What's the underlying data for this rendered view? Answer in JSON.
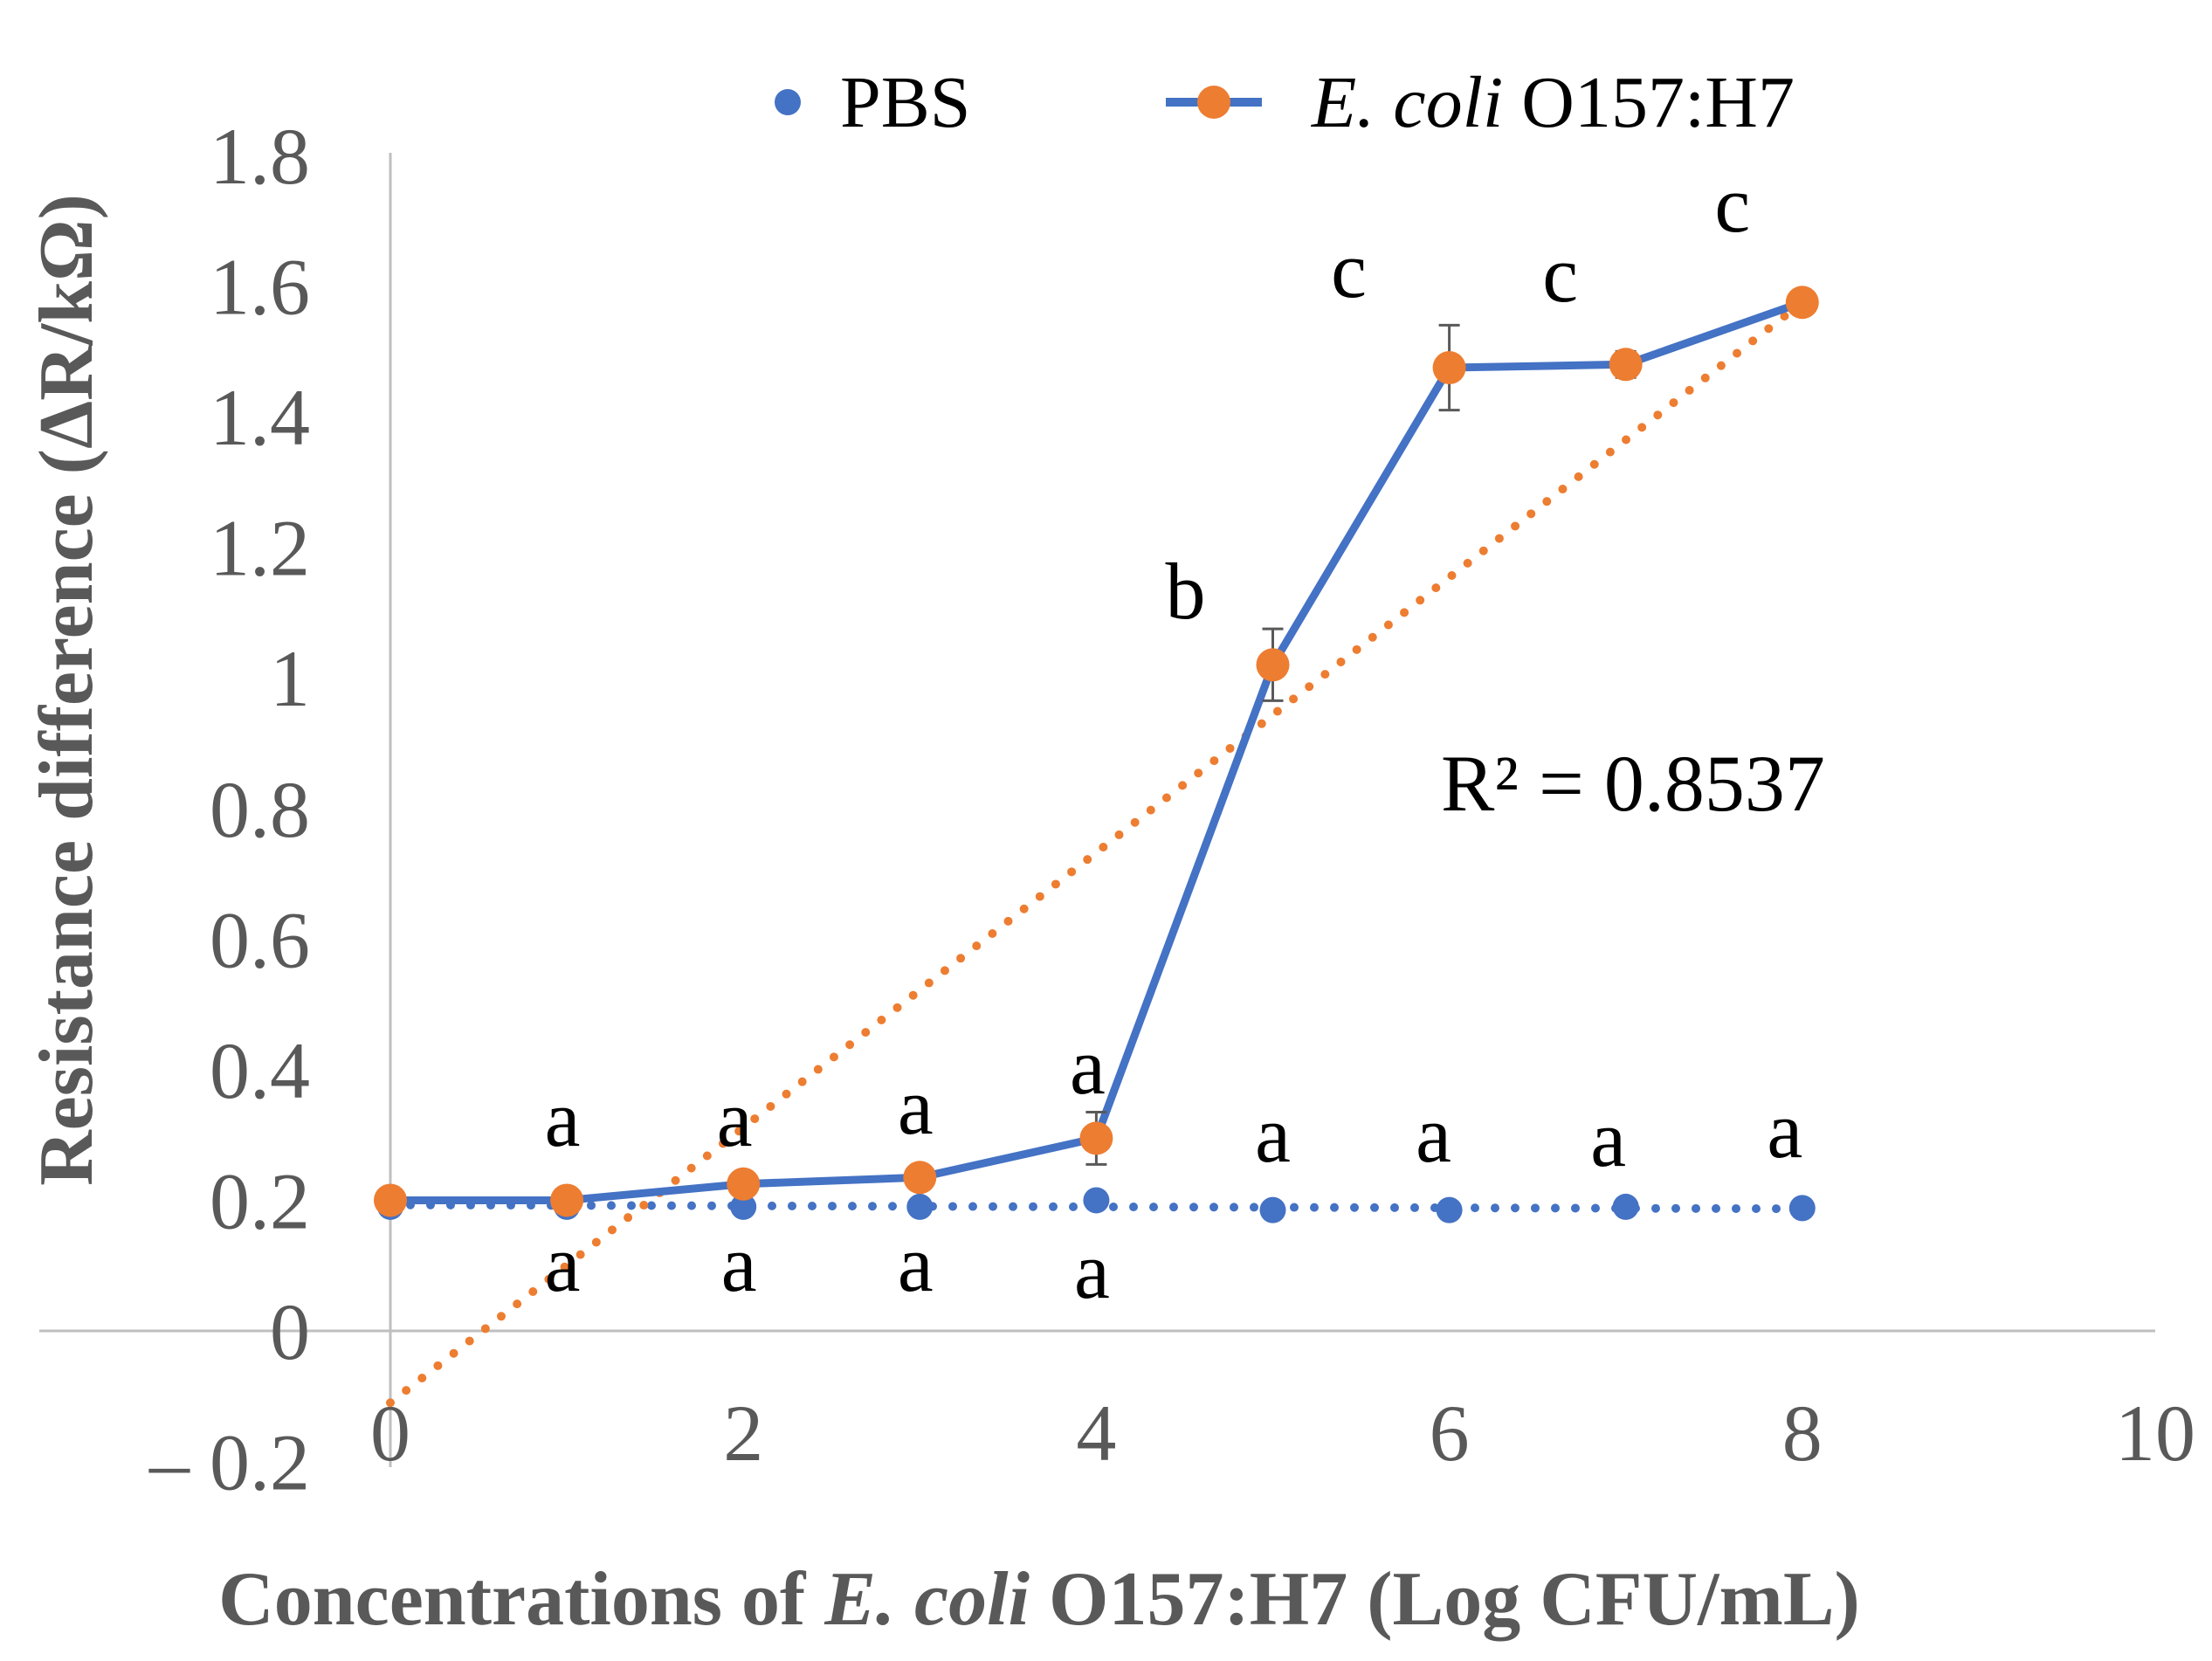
{
  "chart_data": {
    "type": "line",
    "title": "",
    "xlabel_parts": [
      "Concentrations of ",
      "E. coli",
      " O157:H7 (Log CFU/mL)"
    ],
    "ylabel": "Resistance difference (ΔR/kΩ)",
    "xlim": [
      0,
      10
    ],
    "ylim": [
      -0.2,
      1.8
    ],
    "xticks": [
      {
        "value": 0,
        "label": "0"
      },
      {
        "value": 2,
        "label": "2"
      },
      {
        "value": 4,
        "label": "4"
      },
      {
        "value": 6,
        "label": "6"
      },
      {
        "value": 8,
        "label": "8"
      },
      {
        "value": 10,
        "label": "10"
      }
    ],
    "yticks": [
      {
        "value": -0.2,
        "label": "– 0.2"
      },
      {
        "value": 0,
        "label": "0"
      },
      {
        "value": 0.2,
        "label": "0.2"
      },
      {
        "value": 0.4,
        "label": "0.4"
      },
      {
        "value": 0.6,
        "label": "0.6"
      },
      {
        "value": 0.8,
        "label": "0.8"
      },
      {
        "value": 1,
        "label": "1"
      },
      {
        "value": 1.2,
        "label": "1.2"
      },
      {
        "value": 1.4,
        "label": "1.4"
      },
      {
        "value": 1.6,
        "label": "1.6"
      },
      {
        "value": 1.8,
        "label": "1.8"
      }
    ],
    "legend_position": "top",
    "series": [
      {
        "name": "PBS",
        "legend_label": "PBS",
        "color": "#4472C4",
        "style": "markers",
        "x": [
          0,
          1,
          2,
          3,
          4,
          5,
          6,
          7,
          8
        ],
        "y": [
          0.19,
          0.19,
          0.19,
          0.19,
          0.2,
          0.185,
          0.185,
          0.19,
          0.188
        ],
        "letters": [
          "",
          "a",
          "a",
          "a",
          "a",
          "a",
          "a",
          "a",
          "a"
        ],
        "trendline": {
          "type": "linear",
          "color": "#4472C4",
          "x0": 0,
          "y0": 0.193,
          "x1": 8,
          "y1": 0.187
        }
      },
      {
        "name": "E. coli O157:H7",
        "legend_label_parts": [
          "E. coli",
          " O157:H7"
        ],
        "line_color": "#4472C4",
        "marker_color": "#ED7D31",
        "style": "line+markers",
        "x": [
          0,
          1,
          2,
          3,
          4,
          5,
          6,
          7,
          8
        ],
        "y": [
          0.2,
          0.2,
          0.225,
          0.235,
          0.295,
          1.02,
          1.475,
          1.48,
          1.575
        ],
        "error": [
          0,
          0,
          0,
          0,
          0.04,
          0.055,
          0.065,
          0.02,
          0
        ],
        "letters": [
          "",
          "a",
          "a",
          "a",
          "a",
          "b",
          "c",
          "c",
          "c"
        ],
        "trendline": {
          "type": "linear",
          "color": "#ED7D31",
          "x0": 0,
          "y0": -0.11,
          "x1": 8,
          "y1": 1.575,
          "r2_label": "R² = 0.8537"
        }
      }
    ]
  }
}
